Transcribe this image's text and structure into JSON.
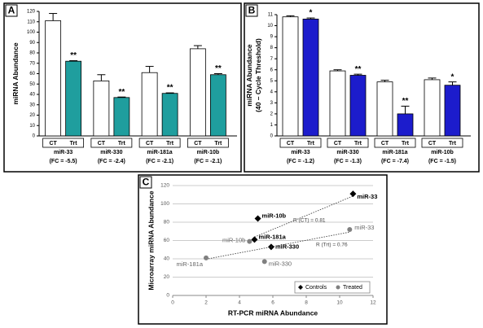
{
  "chart_data": [
    {
      "type": "bar",
      "panel_label": "A",
      "ylabel": [
        "miRNA Abundance"
      ],
      "ylim": [
        0,
        120
      ],
      "yticks": [
        0,
        10,
        20,
        30,
        40,
        50,
        60,
        70,
        80,
        90,
        100,
        110,
        120
      ],
      "groups": [
        "miR-33",
        "miR-330",
        "miR-181a",
        "miR-10b"
      ],
      "group_notes": [
        "(FC = -5.5)",
        "(FC = -2.4)",
        "(FC = -2.1)",
        "(FC = -2.1)"
      ],
      "series": [
        {
          "name": "CT",
          "color": "#ffffff",
          "values": [
            111,
            53,
            61,
            84
          ],
          "errors": [
            7,
            6,
            6,
            3
          ]
        },
        {
          "name": "Trt",
          "color": "#1f9e9e",
          "values": [
            72,
            37,
            41,
            59
          ],
          "errors": [
            0.5,
            0.5,
            0.5,
            1
          ],
          "significance": [
            "**",
            "**",
            "**",
            "**"
          ]
        }
      ]
    },
    {
      "type": "bar",
      "panel_label": "B",
      "ylabel": [
        "miRNA Abundance",
        "(40 – Cycle Threshold)"
      ],
      "ylim": [
        0,
        11
      ],
      "yticks": [
        0,
        1,
        2,
        3,
        4,
        5,
        6,
        7,
        8,
        9,
        10,
        11
      ],
      "groups": [
        "miR-33",
        "miR-330",
        "miR-181a",
        "miR-10b"
      ],
      "group_notes": [
        "(FC = -1.2)",
        "(FC = -1.3)",
        "(FC = -7.4)",
        "(FC = -1.5)"
      ],
      "series": [
        {
          "name": "CT",
          "color": "#ffffff",
          "values": [
            10.8,
            5.9,
            4.9,
            5.1
          ],
          "errors": [
            0.1,
            0.1,
            0.15,
            0.15
          ]
        },
        {
          "name": "Trt",
          "color": "#1c1ccc",
          "values": [
            10.6,
            5.5,
            2.0,
            4.6
          ],
          "errors": [
            0.1,
            0.1,
            0.7,
            0.3
          ],
          "significance": [
            "*",
            "**",
            "**",
            "*"
          ]
        }
      ]
    },
    {
      "type": "scatter",
      "panel_label": "C",
      "xlabel": "RT-PCR miRNA Abundance",
      "ylabel": "Microarray miRNA Abundance",
      "xlim": [
        0,
        12
      ],
      "xticks": [
        0,
        2,
        4,
        6,
        8,
        10,
        12
      ],
      "ylim": [
        0,
        120
      ],
      "yticks": [
        0,
        20,
        40,
        60,
        80,
        100,
        120
      ],
      "grid": true,
      "legend": "lower right",
      "series": [
        {
          "name": "Controls",
          "color": "#000000",
          "marker": "diamond",
          "x": [
            10.8,
            5.9,
            4.9,
            5.1
          ],
          "y": [
            111,
            53,
            61,
            84
          ],
          "point_labels": [
            "miR-33",
            "miR-330",
            "miR-181a",
            "miR-10b"
          ]
        },
        {
          "name": "Treated",
          "color": "#808080",
          "marker": "circle",
          "x": [
            10.6,
            5.5,
            2.0,
            4.6
          ],
          "y": [
            72,
            37,
            41,
            59
          ],
          "point_labels": [
            "miR-33",
            "miR-330",
            "miR-181a",
            "miR-10b"
          ]
        }
      ],
      "annotations": [
        "R (CT) = 0.81",
        "R (Trt) = 0.76"
      ]
    }
  ]
}
